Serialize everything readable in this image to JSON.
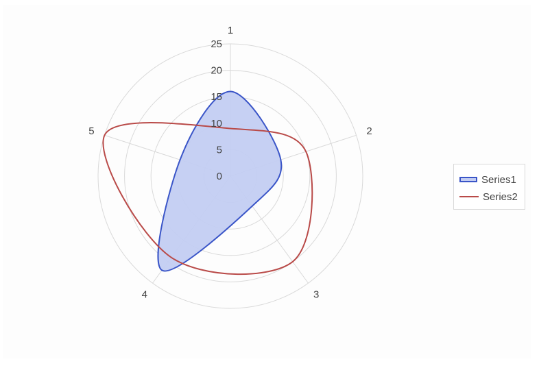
{
  "chart_data": {
    "type": "radar",
    "categories": [
      "1",
      "2",
      "3",
      "4",
      "5"
    ],
    "radial_ticks": [
      "0",
      "5",
      "10",
      "15",
      "20",
      "25"
    ],
    "rmax": 25,
    "series": [
      {
        "name": "Series1",
        "values": [
          16,
          10,
          7,
          22,
          10
        ],
        "color": "#3a55c8",
        "fill": "#c3cdf2",
        "filled": true
      },
      {
        "name": "Series2",
        "values": [
          9,
          15,
          20,
          19,
          25
        ],
        "color": "#b94a48",
        "filled": false
      }
    ],
    "legend": {
      "position": "right",
      "items": [
        "Series1",
        "Series2"
      ]
    },
    "grid_color": "#d9d9d9"
  }
}
